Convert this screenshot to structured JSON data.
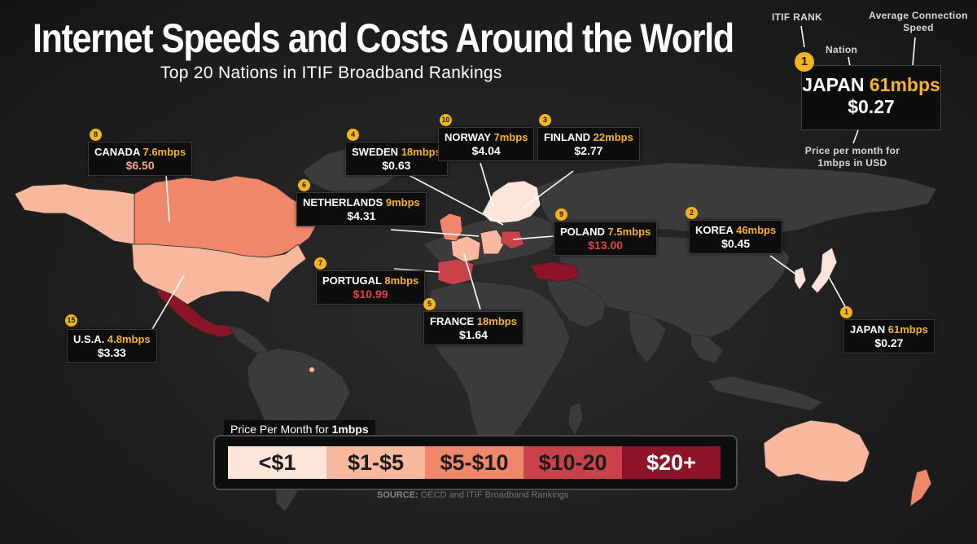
{
  "title": "Internet Speeds and Costs Around the World",
  "subtitle": "Top 20 Nations in ITIF Broadband Rankings",
  "colors": {
    "under_1": "#fde4d8",
    "1_to_5": "#f8b89d",
    "5_to_10": "#f0876a",
    "10_to_20": "#c9424a",
    "over_20": "#8e1429",
    "land": "#3c3c3c",
    "badge": "#f2b51e",
    "speed_text": "#f5b32b"
  },
  "key": {
    "rank_label": "ITIF RANK",
    "nation_label": "Nation",
    "speed_label": "Average Connection Speed",
    "price_label": "Price per month for 1mbps in USD",
    "example": {
      "rank": "1",
      "nation": "JAPAN",
      "speed": "61mbps",
      "price": "$0.27"
    }
  },
  "countries": [
    {
      "rank": "8",
      "name": "CANADA",
      "speed": "7.6mbps",
      "price": "$6.50",
      "price_color": "#f6a788"
    },
    {
      "rank": "4",
      "name": "SWEDEN",
      "speed": "18mbps",
      "price": "$0.63",
      "price_color": "#ffffff"
    },
    {
      "rank": "10",
      "name": "NORWAY",
      "speed": "7mbps",
      "price": "$4.04",
      "price_color": "#ffffff"
    },
    {
      "rank": "3",
      "name": "FINLAND",
      "speed": "22mbps",
      "price": "$2.77",
      "price_color": "#ffffff"
    },
    {
      "rank": "6",
      "name": "NETHERLANDS",
      "speed": "9mbps",
      "price": "$4.31",
      "price_color": "#ffffff"
    },
    {
      "rank": "9",
      "name": "POLAND",
      "speed": "7.5mbps",
      "price": "$13.00",
      "price_color": "#e0434a"
    },
    {
      "rank": "2",
      "name": "KOREA",
      "speed": "46mbps",
      "price": "$0.45",
      "price_color": "#ffffff"
    },
    {
      "rank": "7",
      "name": "PORTUGAL",
      "speed": "8mbps",
      "price": "$10.99",
      "price_color": "#e0434a"
    },
    {
      "rank": "5",
      "name": "FRANCE",
      "speed": "18mbps",
      "price": "$1.64",
      "price_color": "#ffffff"
    },
    {
      "rank": "15",
      "name": "U.S.A.",
      "speed": "4.8mbps",
      "price": "$3.33",
      "price_color": "#ffffff"
    },
    {
      "rank": "1",
      "name": "JAPAN",
      "speed": "61mbps",
      "price": "$0.27",
      "price_color": "#ffffff"
    }
  ],
  "price_legend": {
    "title_prefix": "Price Per Month for ",
    "title_bold": "1mbps",
    "ranges": [
      "<$1",
      "$1-$5",
      "$5-$10",
      "$10-20",
      "$20+"
    ]
  },
  "source": {
    "label": "SOURCE:",
    "text": " OECD and ITIF Broadband Rankings"
  }
}
